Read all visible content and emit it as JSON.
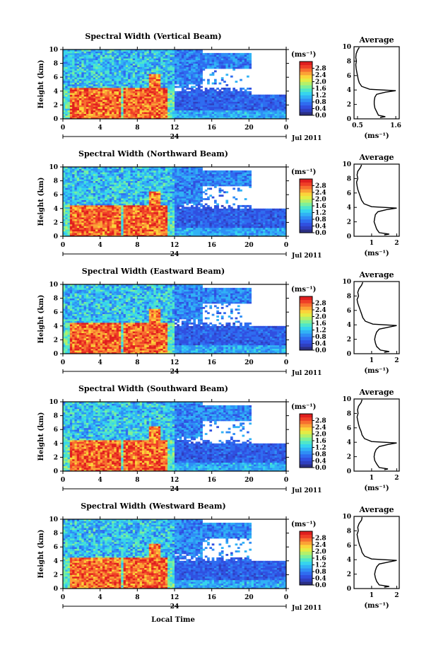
{
  "figure": {
    "xlabel": "Local Time",
    "date_label": "Jul 2011",
    "day_label": "24",
    "unit_label": "(ms⁻¹)",
    "avg_title": "Average",
    "avg_xlabel": "(ms⁻¹)",
    "ylabel": "Height (km)"
  },
  "colors": {
    "colormap": [
      "#2b2f83",
      "#2f3fbf",
      "#3050e0",
      "#2f6cf0",
      "#2f8ef5",
      "#31b2f5",
      "#36d4ee",
      "#4fe6c9",
      "#7ef09a",
      "#b4f06a",
      "#e4ec45",
      "#fbd43a",
      "#fba236",
      "#f76f2f",
      "#ef3f27",
      "#e01f1f"
    ]
  },
  "chart_data": [
    {
      "type": "heatmap",
      "title": "Spectral Width (Vertical Beam)",
      "x_ticks": [
        "0",
        "4",
        "8",
        "12",
        "16",
        "20",
        "0"
      ],
      "y_ticks": [
        "0",
        "2",
        "4",
        "6",
        "8",
        "10"
      ],
      "xlim": [
        0,
        24
      ],
      "ylim": [
        0,
        10
      ],
      "colorbar": {
        "ticks": [
          "0.0",
          "0.4",
          "0.8",
          "1.2",
          "1.6",
          "2.0",
          "2.4",
          "2.8"
        ],
        "range": [
          0,
          3.2
        ]
      },
      "average": {
        "title": "Average",
        "x_ticks": [
          {
            "v": 0.5,
            "l": "0.5"
          },
          {
            "v": 1.6,
            "l": "1.6"
          }
        ],
        "xlim": [
          0.4,
          1.7
        ],
        "ylim": [
          0,
          10
        ],
        "profile": [
          [
            1.15,
            0.2
          ],
          [
            1.3,
            0.3
          ],
          [
            1.1,
            0.5
          ],
          [
            1.05,
            1
          ],
          [
            1.0,
            1.5
          ],
          [
            0.98,
            2
          ],
          [
            0.98,
            2.5
          ],
          [
            1.0,
            3
          ],
          [
            1.05,
            3.4
          ],
          [
            1.3,
            3.7
          ],
          [
            1.6,
            3.9
          ],
          [
            0.85,
            4.1
          ],
          [
            0.62,
            4.5
          ],
          [
            0.55,
            5
          ],
          [
            0.52,
            5.5
          ],
          [
            0.5,
            6
          ],
          [
            0.48,
            6.5
          ],
          [
            0.46,
            7
          ],
          [
            0.45,
            7.5
          ],
          [
            0.47,
            8
          ],
          [
            0.45,
            8.5
          ],
          [
            0.46,
            9
          ],
          [
            0.5,
            9.5
          ],
          [
            0.55,
            9.9
          ]
        ]
      }
    },
    {
      "type": "heatmap",
      "title": "Spectral Width (Northward Beam)",
      "x_ticks": [
        "0",
        "4",
        "8",
        "12",
        "16",
        "20",
        "0"
      ],
      "y_ticks": [
        "0",
        "2",
        "4",
        "6",
        "8",
        "10"
      ],
      "xlim": [
        0,
        24
      ],
      "ylim": [
        0,
        10
      ],
      "colorbar": {
        "ticks": [
          "0.0",
          "0.4",
          "0.8",
          "1.2",
          "1.6",
          "2.0",
          "2.4",
          "2.8"
        ],
        "range": [
          0,
          3.2
        ]
      },
      "average": {
        "title": "Average",
        "x_ticks": [
          {
            "v": 1,
            "l": "1"
          },
          {
            "v": 2,
            "l": "2"
          }
        ],
        "xlim": [
          0.3,
          2.1
        ],
        "ylim": [
          0,
          10
        ],
        "profile": [
          [
            1.5,
            0.2
          ],
          [
            1.7,
            0.3
          ],
          [
            1.3,
            0.5
          ],
          [
            1.2,
            1
          ],
          [
            1.15,
            1.5
          ],
          [
            1.1,
            2
          ],
          [
            1.12,
            2.5
          ],
          [
            1.15,
            3
          ],
          [
            1.25,
            3.4
          ],
          [
            1.6,
            3.7
          ],
          [
            2.0,
            3.9
          ],
          [
            1.0,
            4.1
          ],
          [
            0.7,
            4.5
          ],
          [
            0.6,
            5
          ],
          [
            0.55,
            5.5
          ],
          [
            0.5,
            6
          ],
          [
            0.45,
            6.5
          ],
          [
            0.42,
            7
          ],
          [
            0.4,
            7.5
          ],
          [
            0.45,
            8
          ],
          [
            0.42,
            8.5
          ],
          [
            0.45,
            9
          ],
          [
            0.55,
            9.5
          ],
          [
            0.6,
            9.9
          ]
        ]
      }
    },
    {
      "type": "heatmap",
      "title": "Spectral Width (Eastward Beam)",
      "x_ticks": [
        "0",
        "4",
        "8",
        "12",
        "16",
        "20",
        "0"
      ],
      "y_ticks": [
        "0",
        "2",
        "4",
        "6",
        "8",
        "10"
      ],
      "xlim": [
        0,
        24
      ],
      "ylim": [
        0,
        10
      ],
      "colorbar": {
        "ticks": [
          "0.0",
          "0.4",
          "0.8",
          "1.2",
          "1.6",
          "2.0",
          "2.4",
          "2.8"
        ],
        "range": [
          0,
          3.2
        ]
      },
      "average": {
        "title": "Average",
        "x_ticks": [
          {
            "v": 1,
            "l": "1"
          },
          {
            "v": 2,
            "l": "2"
          }
        ],
        "xlim": [
          0.3,
          2.1
        ],
        "ylim": [
          0,
          10
        ],
        "profile": [
          [
            1.5,
            0.2
          ],
          [
            1.7,
            0.3
          ],
          [
            1.35,
            0.5
          ],
          [
            1.2,
            1
          ],
          [
            1.15,
            1.5
          ],
          [
            1.12,
            2
          ],
          [
            1.15,
            2.5
          ],
          [
            1.2,
            3
          ],
          [
            1.3,
            3.4
          ],
          [
            1.7,
            3.7
          ],
          [
            2.0,
            3.9
          ],
          [
            1.05,
            4.1
          ],
          [
            0.75,
            4.5
          ],
          [
            0.65,
            5
          ],
          [
            0.6,
            5.5
          ],
          [
            0.55,
            6
          ],
          [
            0.5,
            6.5
          ],
          [
            0.45,
            7
          ],
          [
            0.42,
            7.5
          ],
          [
            0.48,
            8
          ],
          [
            0.45,
            8.5
          ],
          [
            0.5,
            9
          ],
          [
            0.6,
            9.5
          ],
          [
            0.65,
            9.9
          ]
        ]
      }
    },
    {
      "type": "heatmap",
      "title": "Spectral Width (Southward Beam)",
      "x_ticks": [
        "0",
        "4",
        "8",
        "12",
        "16",
        "20",
        "0"
      ],
      "y_ticks": [
        "0",
        "2",
        "4",
        "6",
        "8",
        "10"
      ],
      "xlim": [
        0,
        24
      ],
      "ylim": [
        0,
        10
      ],
      "colorbar": {
        "ticks": [
          "0.0",
          "0.4",
          "0.8",
          "1.2",
          "1.6",
          "2.0",
          "2.4",
          "2.8"
        ],
        "range": [
          0,
          3.2
        ]
      },
      "average": {
        "title": "Average",
        "x_ticks": [
          {
            "v": 1,
            "l": "1"
          },
          {
            "v": 2,
            "l": "2"
          }
        ],
        "xlim": [
          0.3,
          2.1
        ],
        "ylim": [
          0,
          10
        ],
        "profile": [
          [
            1.5,
            0.2
          ],
          [
            1.65,
            0.3
          ],
          [
            1.3,
            0.5
          ],
          [
            1.2,
            1
          ],
          [
            1.12,
            1.5
          ],
          [
            1.1,
            2
          ],
          [
            1.12,
            2.5
          ],
          [
            1.18,
            3
          ],
          [
            1.3,
            3.4
          ],
          [
            1.65,
            3.7
          ],
          [
            2.0,
            3.9
          ],
          [
            1.0,
            4.1
          ],
          [
            0.72,
            4.5
          ],
          [
            0.62,
            5
          ],
          [
            0.58,
            5.5
          ],
          [
            0.52,
            6
          ],
          [
            0.48,
            6.5
          ],
          [
            0.45,
            7
          ],
          [
            0.42,
            7.5
          ],
          [
            0.46,
            8
          ],
          [
            0.44,
            8.5
          ],
          [
            0.48,
            9
          ],
          [
            0.58,
            9.5
          ],
          [
            0.62,
            9.9
          ]
        ]
      }
    },
    {
      "type": "heatmap",
      "title": "Spectral Width (Westward Beam)",
      "x_ticks": [
        "0",
        "4",
        "8",
        "12",
        "16",
        "20",
        "0"
      ],
      "y_ticks": [
        "0",
        "2",
        "4",
        "6",
        "8",
        "10"
      ],
      "xlim": [
        0,
        24
      ],
      "ylim": [
        0,
        10
      ],
      "colorbar": {
        "ticks": [
          "0.0",
          "0.4",
          "0.8",
          "1.2",
          "1.6",
          "2.0",
          "2.4",
          "2.8"
        ],
        "range": [
          0,
          3.2
        ]
      },
      "average": {
        "title": "Average",
        "x_ticks": [
          {
            "v": 1,
            "l": "1"
          },
          {
            "v": 2,
            "l": "2"
          }
        ],
        "xlim": [
          0.3,
          2.1
        ],
        "ylim": [
          0,
          10
        ],
        "profile": [
          [
            1.5,
            0.2
          ],
          [
            1.7,
            0.3
          ],
          [
            1.3,
            0.5
          ],
          [
            1.2,
            1
          ],
          [
            1.15,
            1.5
          ],
          [
            1.12,
            2
          ],
          [
            1.15,
            2.5
          ],
          [
            1.2,
            3
          ],
          [
            1.3,
            3.4
          ],
          [
            1.7,
            3.7
          ],
          [
            2.0,
            3.9
          ],
          [
            1.0,
            4.1
          ],
          [
            0.72,
            4.5
          ],
          [
            0.62,
            5
          ],
          [
            0.58,
            5.5
          ],
          [
            0.52,
            6
          ],
          [
            0.48,
            6.5
          ],
          [
            0.45,
            7
          ],
          [
            0.42,
            7.5
          ],
          [
            0.47,
            8
          ],
          [
            0.45,
            8.5
          ],
          [
            0.5,
            9
          ],
          [
            0.6,
            9.5
          ],
          [
            0.62,
            9.9
          ]
        ]
      }
    }
  ]
}
